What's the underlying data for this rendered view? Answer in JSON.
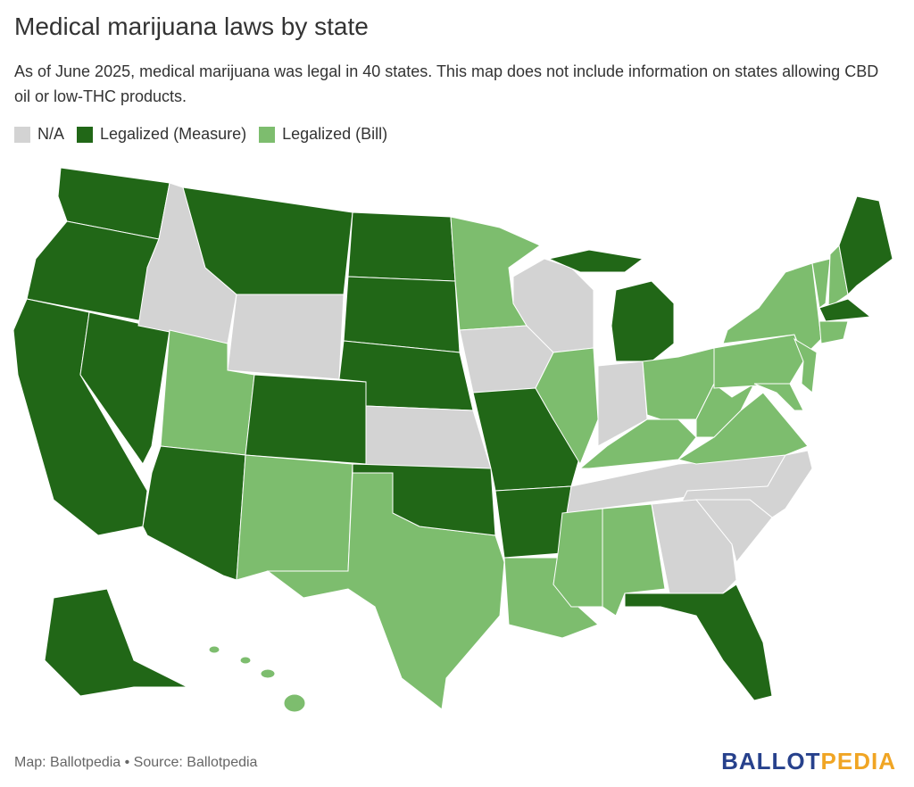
{
  "header": {
    "title": "Medical marijuana laws by state",
    "subtitle": "As of June 2025, medical marijuana was legal in 40 states. This map does not include information on states allowing CBD oil or low-THC products."
  },
  "legend": [
    {
      "label": "N/A",
      "color": "#d3d3d3"
    },
    {
      "label": "Legalized (Measure)",
      "color": "#216717"
    },
    {
      "label": "Legalized (Bill)",
      "color": "#7dbd6e"
    }
  ],
  "footer": {
    "source": "Map: Ballotpedia • Source: Ballotpedia",
    "logo": [
      {
        "text": "BALLOT",
        "color": "#27418c"
      },
      {
        "text": "PEDIA",
        "color": "#f0a524"
      }
    ]
  }
}
